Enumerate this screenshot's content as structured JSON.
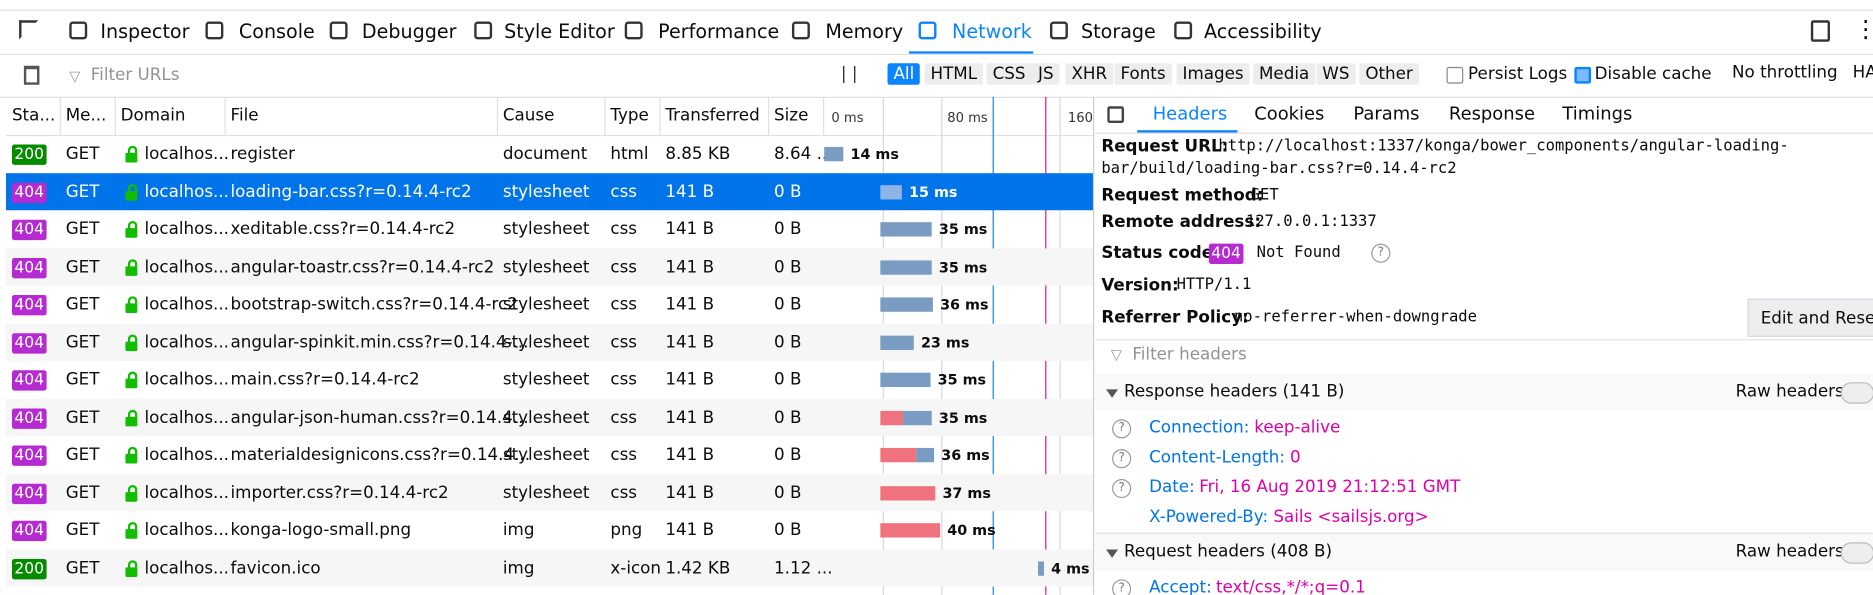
{
  "toolbar": {
    "tabs": [
      "Inspector",
      "Console",
      "Debugger",
      "Style Editor",
      "Performance",
      "Memory",
      "Network",
      "Storage",
      "Accessibility"
    ]
  },
  "filter_bar": {
    "placeholder": "Filter URLs",
    "pause": "| |",
    "types": [
      "All",
      "HTML",
      "CSS",
      "JS",
      "XHR",
      "Fonts",
      "Images",
      "Media",
      "WS",
      "Other"
    ],
    "persist_logs": "Persist Logs",
    "disable_cache": "Disable cache",
    "throttling": "No throttling",
    "har": "HA"
  },
  "table": {
    "columns": [
      "Sta...",
      "Me...",
      "Domain",
      "File",
      "Cause",
      "Type",
      "Transferred",
      "Size"
    ],
    "timeline_ticks": [
      "0 ms",
      "80 ms",
      "160"
    ],
    "rows": [
      [
        "200",
        "GET",
        "localhos...",
        "register",
        "document",
        "html",
        "8.85 KB",
        "8.64 ...",
        "14 ms"
      ],
      [
        "404",
        "GET",
        "localhos...",
        "loading-bar.css?r=0.14.4-rc2",
        "stylesheet",
        "css",
        "141 B",
        "0 B",
        "15 ms"
      ],
      [
        "404",
        "GET",
        "localhos...",
        "xeditable.css?r=0.14.4-rc2",
        "stylesheet",
        "css",
        "141 B",
        "0 B",
        "35 ms"
      ],
      [
        "404",
        "GET",
        "localhos...",
        "angular-toastr.css?r=0.14.4-rc2",
        "stylesheet",
        "css",
        "141 B",
        "0 B",
        "35 ms"
      ],
      [
        "404",
        "GET",
        "localhos...",
        "bootstrap-switch.css?r=0.14.4-rc2",
        "stylesheet",
        "css",
        "141 B",
        "0 B",
        "36 ms"
      ],
      [
        "404",
        "GET",
        "localhos...",
        "angular-spinkit.min.css?r=0.14.4-...",
        "stylesheet",
        "css",
        "141 B",
        "0 B",
        "23 ms"
      ],
      [
        "404",
        "GET",
        "localhos...",
        "main.css?r=0.14.4-rc2",
        "stylesheet",
        "css",
        "141 B",
        "0 B",
        "35 ms"
      ],
      [
        "404",
        "GET",
        "localhos...",
        "angular-json-human.css?r=0.14.4...",
        "stylesheet",
        "css",
        "141 B",
        "0 B",
        "35 ms"
      ],
      [
        "404",
        "GET",
        "localhos...",
        "materialdesignicons.css?r=0.14.4...",
        "stylesheet",
        "css",
        "141 B",
        "0 B",
        "36 ms"
      ],
      [
        "404",
        "GET",
        "localhos...",
        "importer.css?r=0.14.4-rc2",
        "stylesheet",
        "css",
        "141 B",
        "0 B",
        "37 ms"
      ],
      [
        "404",
        "GET",
        "localhos...",
        "konga-logo-small.png",
        "img",
        "png",
        "141 B",
        "0 B",
        "40 ms"
      ],
      [
        "200",
        "GET",
        "localhos...",
        "favicon.ico",
        "img",
        "x-icon",
        "1.42 KB",
        "1.12 ...",
        "4 ms"
      ]
    ]
  },
  "details": {
    "tabs": [
      "Headers",
      "Cookies",
      "Params",
      "Response",
      "Timings"
    ],
    "request_url": {
      "label": "Request URL:",
      "value": [
        "http://localhost:1337/konga/bower_components/angular-loading-",
        "bar/build/loading-bar.css?r=0.14.4-rc2"
      ]
    },
    "request_method": {
      "label": "Request method:",
      "value": "GET"
    },
    "remote_address": {
      "label": "Remote address:",
      "value": "127.0.0.1:1337"
    },
    "status_code": {
      "label": "Status code:",
      "code": "404",
      "text": "Not Found"
    },
    "version": {
      "label": "Version:",
      "value": "HTTP/1.1"
    },
    "referrer_policy": {
      "label": "Referrer Policy:",
      "value": "no-referrer-when-downgrade"
    },
    "edit_button": "Edit and Resen",
    "filter_placeholder": "Filter headers",
    "response_headers": {
      "title": "Response headers (141 B)",
      "raw": "Raw headers",
      "items": [
        [
          "Connection:",
          "keep-alive"
        ],
        [
          "Content-Length:",
          "0"
        ],
        [
          "Date:",
          "Fri, 16 Aug 2019 21:12:51 GMT"
        ],
        [
          "X-Powered-By:",
          "Sails <sailsjs.org>"
        ]
      ]
    },
    "request_headers": {
      "title": "Request headers (408 B)",
      "raw": "Raw headers",
      "items": [
        [
          "Accept:",
          "text/css,*/*;q=0.1"
        ]
      ]
    }
  }
}
